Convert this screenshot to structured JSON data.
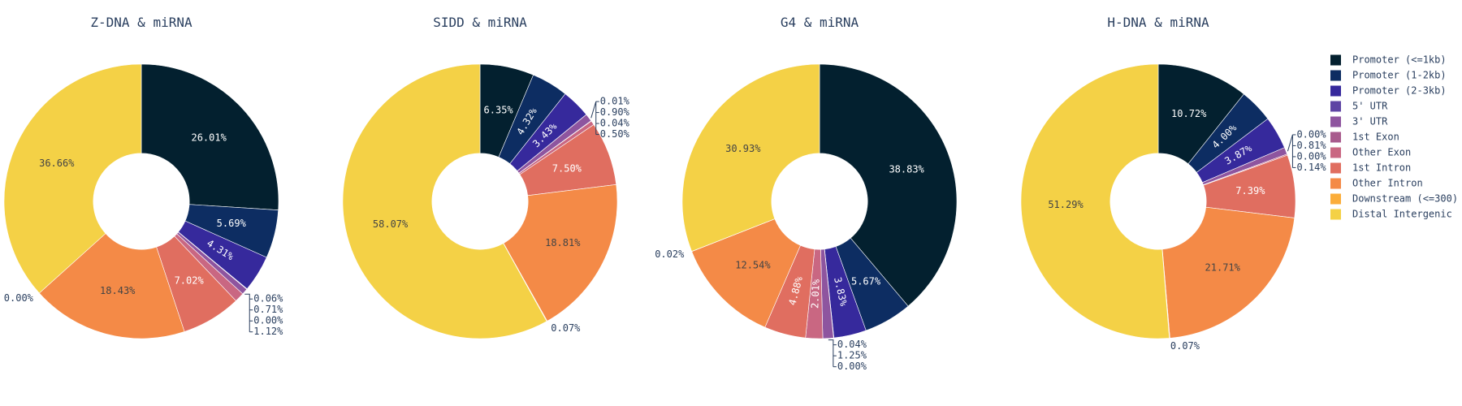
{
  "chart_data": [
    {
      "type": "pie",
      "title": "Z-DNA & miRNA",
      "categories": [
        "Promoter (<=1kb)",
        "Promoter (1-2kb)",
        "Promoter (2-3kb)",
        "5' UTR",
        "3' UTR",
        "1st Exon",
        "Other Exon",
        "1st Intron",
        "Other Intron",
        "Downstream (<=300)",
        "Distal Intergenic"
      ],
      "values": [
        26.01,
        5.69,
        4.31,
        0.06,
        0.71,
        0.0,
        1.12,
        7.02,
        18.43,
        0.0,
        36.66
      ],
      "labels": [
        "26.01%",
        "5.69%",
        "4.31%",
        "0.06%",
        "0.71%",
        "0.00%",
        "1.12%",
        "7.02%",
        "18.43%",
        "0.00%",
        "36.66%"
      ]
    },
    {
      "type": "pie",
      "title": "SIDD & miRNA",
      "categories": [
        "Promoter (<=1kb)",
        "Promoter (1-2kb)",
        "Promoter (2-3kb)",
        "5' UTR",
        "3' UTR",
        "1st Exon",
        "Other Exon",
        "1st Intron",
        "Other Intron",
        "Downstream (<=300)",
        "Distal Intergenic"
      ],
      "values": [
        6.35,
        4.32,
        3.43,
        0.01,
        0.9,
        0.04,
        0.5,
        7.5,
        18.81,
        0.07,
        58.07
      ],
      "labels": [
        "6.35%",
        "4.32%",
        "3.43%",
        "0.01%",
        "0.90%",
        "0.04%",
        "0.50%",
        "7.50%",
        "18.81%",
        "0.07%",
        "58.07%"
      ]
    },
    {
      "type": "pie",
      "title": "G4 & miRNA",
      "categories": [
        "Promoter (<=1kb)",
        "Promoter (1-2kb)",
        "Promoter (2-3kb)",
        "5' UTR",
        "3' UTR",
        "1st Exon",
        "Other Exon",
        "1st Intron",
        "Other Intron",
        "Downstream (<=300)",
        "Distal Intergenic"
      ],
      "values": [
        38.83,
        5.67,
        3.83,
        0.04,
        1.25,
        0.0,
        2.01,
        4.88,
        12.54,
        0.02,
        30.93
      ],
      "labels": [
        "38.83%",
        "5.67%",
        "3.83%",
        "0.04%",
        "1.25%",
        "0.00%",
        "2.01%",
        "4.88%",
        "12.54%",
        "0.02%",
        "30.93%"
      ]
    },
    {
      "type": "pie",
      "title": "H-DNA & miRNA",
      "categories": [
        "Promoter (<=1kb)",
        "Promoter (1-2kb)",
        "Promoter (2-3kb)",
        "5' UTR",
        "3' UTR",
        "1st Exon",
        "Other Exon",
        "1st Intron",
        "Other Intron",
        "Downstream (<=300)",
        "Distal Intergenic"
      ],
      "values": [
        10.72,
        4.0,
        3.87,
        0.0,
        0.81,
        0.0,
        0.14,
        7.39,
        21.71,
        0.07,
        51.29
      ],
      "labels": [
        "10.72%",
        "4.00%",
        "3.87%",
        "0.00%",
        "0.81%",
        "0.00%",
        "0.14%",
        "7.39%",
        "21.71%",
        "0.07%",
        "51.29%"
      ]
    }
  ],
  "legend": {
    "placement": "right",
    "items": [
      {
        "label": "Promoter (<=1kb)",
        "color": "#03202f"
      },
      {
        "label": "Promoter (1-2kb)",
        "color": "#0d2d62"
      },
      {
        "label": "Promoter (2-3kb)",
        "color": "#36299c"
      },
      {
        "label": "5' UTR",
        "color": "#5e44a4"
      },
      {
        "label": "3' UTR",
        "color": "#8e559f"
      },
      {
        "label": "1st Exon",
        "color": "#a85a8d"
      },
      {
        "label": "Other Exon",
        "color": "#c96782"
      },
      {
        "label": "1st Intron",
        "color": "#e06e60"
      },
      {
        "label": "Other Intron",
        "color": "#f48a47"
      },
      {
        "label": "Downstream (<=300)",
        "color": "#fbad3a"
      },
      {
        "label": "Distal Intergenic",
        "color": "#f4d146"
      }
    ]
  },
  "hole": 0.35,
  "label_dark_color": "#444444",
  "label_light_color": "#ffffff",
  "leader_color": "#2a3f5f",
  "outside_label_color": "#2a3f5f"
}
